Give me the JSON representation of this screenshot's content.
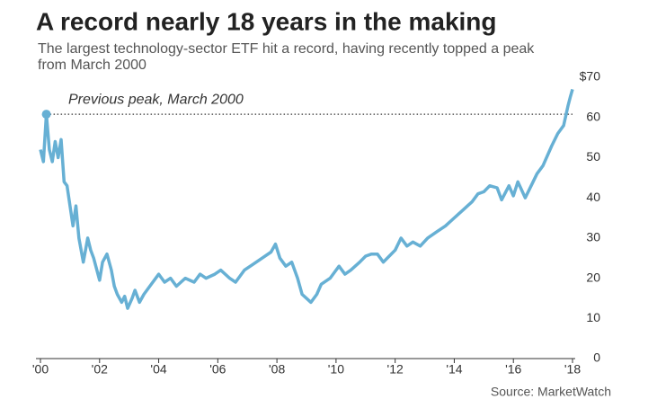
{
  "chart_data": {
    "type": "line",
    "title": "A record nearly 18 years in the making",
    "subtitle": [
      "The largest technology-sector ETF hit a record, having recently topped a peak",
      "from March 2000"
    ],
    "source": "Source: MarketWatch",
    "annotation": {
      "text": "Previous peak, March 2000",
      "x": 2000.2,
      "y": 60.8
    },
    "color": "#67b0d4",
    "xlim": [
      2000,
      2018
    ],
    "ylim": [
      0,
      70
    ],
    "xticks": [
      {
        "value": 2000,
        "label": "'00"
      },
      {
        "value": 2002,
        "label": "'02"
      },
      {
        "value": 2004,
        "label": "'04"
      },
      {
        "value": 2006,
        "label": "'06"
      },
      {
        "value": 2008,
        "label": "'08"
      },
      {
        "value": 2010,
        "label": "'10"
      },
      {
        "value": 2012,
        "label": "'12"
      },
      {
        "value": 2014,
        "label": "'14"
      },
      {
        "value": 2016,
        "label": "'16"
      },
      {
        "value": 2018,
        "label": "'18"
      }
    ],
    "yticks": [
      0,
      10,
      20,
      30,
      40,
      50,
      60,
      {
        "value": 70,
        "label": "$70"
      }
    ],
    "x": [
      2000.0,
      2000.1,
      2000.2,
      2000.3,
      2000.4,
      2000.5,
      2000.6,
      2000.7,
      2000.8,
      2000.9,
      2001.0,
      2001.1,
      2001.2,
      2001.3,
      2001.45,
      2001.6,
      2001.7,
      2001.8,
      2002.0,
      2002.1,
      2002.25,
      2002.4,
      2002.5,
      2002.6,
      2002.75,
      2002.85,
      2002.95,
      2003.1,
      2003.2,
      2003.35,
      2003.5,
      2003.7,
      2004.0,
      2004.2,
      2004.4,
      2004.6,
      2004.9,
      2005.2,
      2005.4,
      2005.6,
      2005.9,
      2006.1,
      2006.4,
      2006.6,
      2006.9,
      2007.2,
      2007.5,
      2007.8,
      2007.95,
      2008.1,
      2008.3,
      2008.5,
      2008.7,
      2008.85,
      2009.0,
      2009.15,
      2009.35,
      2009.5,
      2009.8,
      2010.0,
      2010.1,
      2010.3,
      2010.5,
      2010.8,
      2011.0,
      2011.2,
      2011.4,
      2011.6,
      2011.8,
      2012.0,
      2012.2,
      2012.4,
      2012.6,
      2012.85,
      2013.1,
      2013.4,
      2013.7,
      2014.0,
      2014.3,
      2014.45,
      2014.6,
      2014.8,
      2015.0,
      2015.2,
      2015.45,
      2015.6,
      2015.85,
      2016.0,
      2016.15,
      2016.4,
      2016.6,
      2016.8,
      2017.0,
      2017.3,
      2017.5,
      2017.7,
      2017.85,
      2017.92,
      2018.0
    ],
    "values": [
      52,
      49,
      60.8,
      52,
      49,
      54,
      50,
      54.5,
      44,
      43,
      38,
      33,
      38,
      30,
      24,
      30,
      27,
      25,
      19.5,
      24,
      26,
      22,
      18,
      16,
      14,
      15.5,
      12.5,
      15,
      17,
      14,
      16,
      18,
      21,
      19,
      20,
      18,
      20,
      19,
      21,
      20,
      21,
      22,
      20,
      19,
      22,
      23.5,
      25,
      26.5,
      28.5,
      25,
      23,
      24,
      20,
      16,
      15,
      14,
      16,
      18.5,
      20,
      22,
      23,
      21,
      22,
      24,
      25.5,
      26,
      26,
      24,
      25.5,
      27,
      30,
      28,
      29,
      28,
      30,
      31.5,
      33,
      35,
      37,
      38,
      39,
      41,
      41.5,
      43,
      42.5,
      39.5,
      43,
      40.5,
      44,
      40,
      43,
      46,
      48,
      53,
      56,
      58,
      63,
      65,
      67
    ]
  }
}
